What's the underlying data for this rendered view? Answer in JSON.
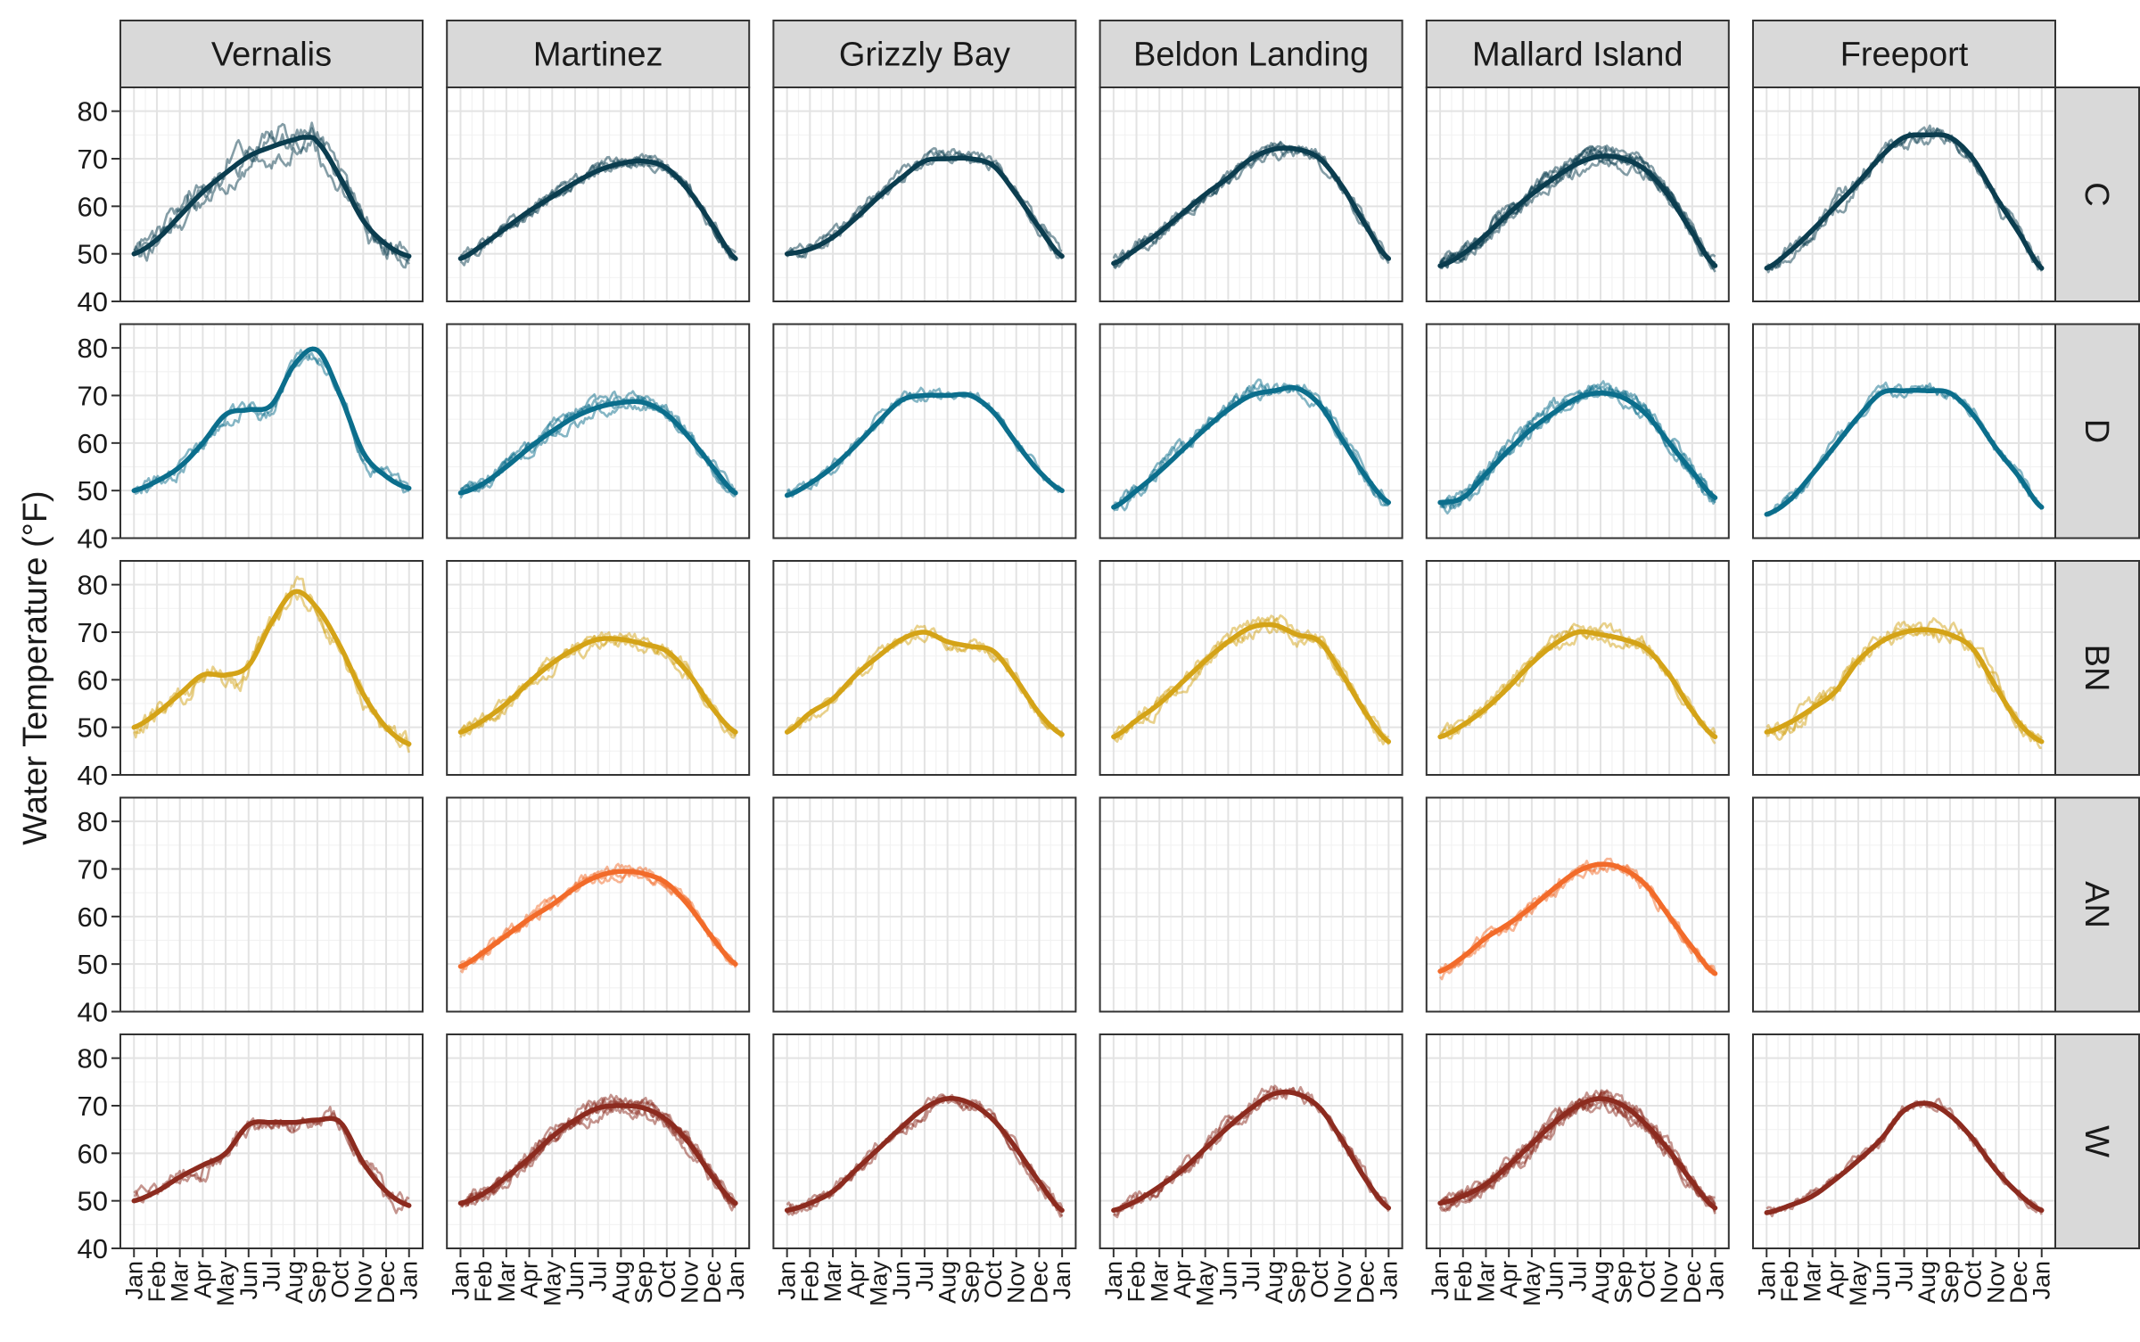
{
  "chart_data": {
    "type": "line",
    "ylabel": "Water Temperature (°F)",
    "xlabel": "",
    "ylim": [
      40,
      85
    ],
    "y_ticks": [
      40,
      50,
      60,
      70,
      80
    ],
    "x_domain_months": [
      0,
      12
    ],
    "x_tick_labels": [
      "Jan",
      "Feb",
      "Mar",
      "Apr",
      "May",
      "Jun",
      "Jul",
      "Aug",
      "Sep",
      "Oct",
      "Nov",
      "Dec",
      "Jan"
    ],
    "grid": true,
    "theme": "bw",
    "columns": [
      "Vernalis",
      "Martinez",
      "Grizzly Bay",
      "Beldon Landing",
      "Mallard Island",
      "Freeport"
    ],
    "rows": [
      {
        "label": "C",
        "color": "#0b3d4f"
      },
      {
        "label": "D",
        "color": "#0b6e8c"
      },
      {
        "label": "BN",
        "color": "#d4a317"
      },
      {
        "label": "AN",
        "color": "#f26b2a"
      },
      {
        "label": "W",
        "color": "#8c2b1f"
      }
    ],
    "panels": [
      {
        "row": "C",
        "column": "Vernalis",
        "n_years": 3,
        "noise": 2.6,
        "smooth_x": [
          0,
          1,
          2,
          3,
          4,
          5,
          6,
          7,
          7.5,
          8,
          9,
          10,
          11,
          12
        ],
        "smooth_y": [
          50,
          53,
          58,
          63,
          67,
          70.5,
          72.5,
          74,
          74.5,
          73.5,
          66,
          57,
          52,
          49.5
        ]
      },
      {
        "row": "C",
        "column": "Martinez",
        "n_years": 4,
        "noise": 1.3,
        "smooth_x": [
          0,
          1,
          2,
          3,
          4,
          5,
          6,
          7,
          8,
          9,
          10,
          11,
          12
        ],
        "smooth_y": [
          49,
          52,
          55.5,
          59,
          62,
          65,
          67.5,
          69,
          69.5,
          68,
          63,
          56,
          49
        ]
      },
      {
        "row": "C",
        "column": "Grizzly Bay",
        "n_years": 3,
        "noise": 1.3,
        "smooth_x": [
          0,
          1,
          2,
          3,
          4,
          5,
          6,
          7,
          8,
          9,
          10,
          11,
          12
        ],
        "smooth_y": [
          50,
          51,
          53.5,
          57.5,
          62,
          66,
          69.5,
          70,
          70,
          68.5,
          62.5,
          55.5,
          49.5
        ]
      },
      {
        "row": "C",
        "column": "Beldon Landing",
        "n_years": 4,
        "noise": 1.4,
        "smooth_x": [
          0,
          1,
          2,
          3,
          4,
          5,
          6,
          7,
          8,
          9,
          10,
          11,
          12
        ],
        "smooth_y": [
          48,
          51,
          54.5,
          58.5,
          62.5,
          66,
          70,
          72,
          72,
          70,
          64,
          56,
          49
        ]
      },
      {
        "row": "C",
        "column": "Mallard Island",
        "n_years": 7,
        "noise": 1.5,
        "smooth_x": [
          0,
          1,
          2,
          3,
          4,
          5,
          6,
          7,
          8,
          9,
          10,
          11,
          12
        ],
        "smooth_y": [
          47.5,
          50,
          54,
          58.5,
          62.5,
          66,
          69,
          70.5,
          70,
          67.5,
          62,
          54.5,
          47.5
        ]
      },
      {
        "row": "C",
        "column": "Freeport",
        "n_years": 3,
        "noise": 1.8,
        "smooth_x": [
          0,
          1,
          2,
          3,
          4,
          5,
          6,
          7,
          8,
          9,
          10,
          11,
          12
        ],
        "smooth_y": [
          47,
          50.5,
          55,
          60,
          65,
          70.5,
          74.5,
          75,
          74.5,
          70,
          62,
          54.5,
          47
        ]
      },
      {
        "row": "D",
        "column": "Vernalis",
        "n_years": 2,
        "noise": 1.6,
        "smooth_x": [
          0,
          1,
          2,
          3,
          4,
          5,
          6,
          7,
          8,
          9,
          10,
          11,
          12
        ],
        "smooth_y": [
          50,
          52,
          55,
          60,
          66,
          67,
          68,
          76.5,
          79.5,
          70,
          58,
          53,
          50.5
        ]
      },
      {
        "row": "D",
        "column": "Martinez",
        "n_years": 4,
        "noise": 1.4,
        "smooth_x": [
          0,
          1,
          2,
          3,
          4,
          5,
          6,
          7,
          8,
          9,
          10,
          11,
          12
        ],
        "smooth_y": [
          49.5,
          51.5,
          55,
          59,
          62.5,
          65.5,
          67.5,
          68.5,
          68.5,
          66,
          61,
          55,
          49.5
        ]
      },
      {
        "row": "D",
        "column": "Grizzly Bay",
        "n_years": 2,
        "noise": 1.2,
        "smooth_x": [
          0,
          1,
          2,
          3,
          4,
          5,
          6,
          7,
          8,
          9,
          10,
          11,
          12
        ],
        "smooth_y": [
          49,
          51.5,
          55,
          59.5,
          64.5,
          69,
          70,
          70,
          70,
          66.5,
          60,
          54,
          50
        ]
      },
      {
        "row": "D",
        "column": "Beldon Landing",
        "n_years": 3,
        "noise": 1.6,
        "smooth_x": [
          0,
          1,
          2,
          3,
          4,
          5,
          6,
          7,
          8,
          9,
          10,
          11,
          12
        ],
        "smooth_y": [
          46.5,
          50,
          54,
          58.5,
          63,
          67,
          70,
          71,
          71.5,
          68,
          60.5,
          53,
          47.5
        ]
      },
      {
        "row": "D",
        "column": "Mallard Island",
        "n_years": 5,
        "noise": 1.5,
        "smooth_x": [
          0,
          1,
          2,
          3,
          4,
          5,
          6,
          7,
          8,
          9,
          10,
          11,
          12
        ],
        "smooth_y": [
          47.5,
          48.5,
          53.5,
          58.5,
          63,
          66.5,
          69.5,
          70.5,
          69.5,
          66,
          60,
          54,
          48.5
        ]
      },
      {
        "row": "D",
        "column": "Freeport",
        "n_years": 2,
        "noise": 1.3,
        "smooth_x": [
          0,
          1,
          2,
          3,
          4,
          5,
          6,
          7,
          8,
          9,
          10,
          11,
          12
        ],
        "smooth_y": [
          45,
          48,
          53.5,
          59.5,
          65.5,
          70.5,
          71,
          71,
          70.5,
          66,
          59,
          53,
          46.5
        ]
      },
      {
        "row": "BN",
        "column": "Vernalis",
        "n_years": 2,
        "noise": 2.2,
        "smooth_x": [
          0,
          1,
          2,
          3,
          4,
          5,
          6,
          7,
          8,
          9,
          10,
          11,
          12
        ],
        "smooth_y": [
          50,
          53,
          57,
          61,
          61,
          63,
          72,
          78.5,
          75,
          67,
          57,
          50,
          46.5
        ]
      },
      {
        "row": "BN",
        "column": "Martinez",
        "n_years": 3,
        "noise": 1.4,
        "smooth_x": [
          0,
          1,
          2,
          3,
          4,
          5,
          6,
          7,
          8,
          9,
          10,
          11,
          12
        ],
        "smooth_y": [
          49,
          51.5,
          55,
          59.5,
          63.5,
          66.5,
          68.5,
          68.5,
          67.5,
          66,
          61,
          54,
          49
        ]
      },
      {
        "row": "BN",
        "column": "Grizzly Bay",
        "n_years": 2,
        "noise": 1.3,
        "smooth_x": [
          0,
          1,
          2,
          3,
          4,
          5,
          6,
          7,
          8,
          9,
          10,
          11,
          12
        ],
        "smooth_y": [
          49,
          53,
          56,
          61,
          65,
          68.5,
          70,
          68,
          67,
          66,
          60,
          53,
          48.5
        ]
      },
      {
        "row": "BN",
        "column": "Beldon Landing",
        "n_years": 3,
        "noise": 1.5,
        "smooth_x": [
          0,
          1,
          2,
          3,
          4,
          5,
          6,
          7,
          8,
          9,
          10,
          11,
          12
        ],
        "smooth_y": [
          48,
          51.5,
          55,
          59.5,
          64,
          68,
          71,
          71.5,
          69.5,
          68,
          61,
          53,
          47
        ]
      },
      {
        "row": "BN",
        "column": "Mallard Island",
        "n_years": 3,
        "noise": 1.4,
        "smooth_x": [
          0,
          1,
          2,
          3,
          4,
          5,
          6,
          7,
          8,
          9,
          10,
          11,
          12
        ],
        "smooth_y": [
          48,
          50.5,
          54,
          58.5,
          63.5,
          67.5,
          70,
          69.5,
          68.5,
          66.5,
          61,
          53.5,
          48
        ]
      },
      {
        "row": "BN",
        "column": "Freeport",
        "n_years": 3,
        "noise": 1.8,
        "smooth_x": [
          0,
          1,
          2,
          3,
          4,
          5,
          6,
          7,
          8,
          9,
          10,
          11,
          12
        ],
        "smooth_y": [
          49,
          51,
          54,
          57.5,
          64,
          68,
          70,
          70.5,
          69.5,
          66.5,
          58.5,
          51,
          47
        ]
      },
      {
        "row": "AN",
        "column": "Martinez",
        "n_years": 3,
        "noise": 1.3,
        "smooth_x": [
          0,
          1,
          2,
          3,
          4,
          5,
          6,
          7,
          8,
          9,
          10,
          11,
          12
        ],
        "smooth_y": [
          49.5,
          52.5,
          56,
          59.5,
          62.5,
          66,
          68.5,
          69.5,
          69,
          67,
          62,
          55.5,
          50
        ]
      },
      {
        "row": "AN",
        "column": "Mallard Island",
        "n_years": 3,
        "noise": 1.4,
        "smooth_x": [
          0,
          1,
          2,
          3,
          4,
          5,
          6,
          7,
          8,
          9,
          10,
          11,
          12
        ],
        "smooth_y": [
          48.5,
          51.5,
          55.5,
          58.5,
          62,
          66,
          69.5,
          71,
          70,
          66.5,
          60,
          53.5,
          48
        ]
      },
      {
        "row": "W",
        "column": "Vernalis",
        "n_years": 2,
        "noise": 2.0,
        "smooth_x": [
          0,
          1,
          2,
          3,
          4,
          5,
          6,
          7,
          8,
          9,
          10,
          11,
          12
        ],
        "smooth_y": [
          50,
          52,
          55,
          57.5,
          60,
          66,
          66.5,
          66.5,
          67,
          66.5,
          58,
          52,
          49
        ]
      },
      {
        "row": "W",
        "column": "Martinez",
        "n_years": 6,
        "noise": 1.6,
        "smooth_x": [
          0,
          1,
          2,
          3,
          4,
          5,
          6,
          7,
          8,
          9,
          10,
          11,
          12
        ],
        "smooth_y": [
          49.5,
          51.5,
          55,
          59,
          63.5,
          67,
          69.5,
          70,
          69.5,
          67,
          62,
          55,
          49.5
        ]
      },
      {
        "row": "W",
        "column": "Grizzly Bay",
        "n_years": 3,
        "noise": 1.4,
        "smooth_x": [
          0,
          1,
          2,
          3,
          4,
          5,
          6,
          7,
          8,
          9,
          10,
          11,
          12
        ],
        "smooth_y": [
          48,
          49.5,
          52,
          56.5,
          61,
          65.5,
          69.5,
          71.5,
          70.5,
          67,
          61,
          54,
          48
        ]
      },
      {
        "row": "W",
        "column": "Beldon Landing",
        "n_years": 3,
        "noise": 1.5,
        "smooth_x": [
          0,
          1,
          2,
          3,
          4,
          5,
          6,
          7,
          8,
          9,
          10,
          11,
          12
        ],
        "smooth_y": [
          48,
          50,
          53,
          56.5,
          61,
          65.5,
          69.5,
          72.5,
          72.5,
          69.5,
          62.5,
          54.5,
          48.5
        ]
      },
      {
        "row": "W",
        "column": "Mallard Island",
        "n_years": 7,
        "noise": 1.6,
        "smooth_x": [
          0,
          1,
          2,
          3,
          4,
          5,
          6,
          7,
          8,
          9,
          10,
          11,
          12
        ],
        "smooth_y": [
          49.5,
          51,
          53.5,
          57.5,
          62,
          66.5,
          70,
          71.5,
          70,
          66,
          60.5,
          54,
          48.5
        ]
      },
      {
        "row": "W",
        "column": "Freeport",
        "n_years": 2,
        "noise": 1.2,
        "smooth_x": [
          0,
          1,
          2,
          3,
          4,
          5,
          6,
          7,
          8,
          9,
          10,
          11,
          12
        ],
        "smooth_y": [
          47.5,
          49,
          51,
          54.5,
          58.5,
          63,
          69,
          70.5,
          68,
          63,
          56.5,
          51.5,
          48
        ]
      }
    ]
  }
}
